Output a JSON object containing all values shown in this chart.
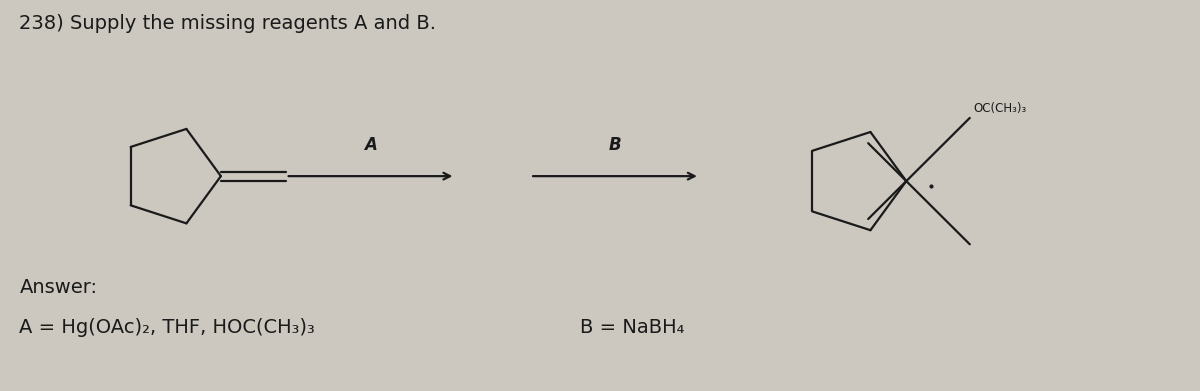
{
  "title": "238) Supply the missing reagents A and B.",
  "background_color": "#ccc8c0",
  "answer_label": "Answer:",
  "answer_A": "A = Hg(OAc)₂, THF, HOC(CH₃)₃",
  "answer_B": "B = NaBH₄",
  "arrow_A_label": "A",
  "arrow_B_label": "B",
  "text_color": "#1a1a1a",
  "font_size_title": 14,
  "font_size_answer": 14,
  "font_size_label": 12,
  "oc_label": "OC(CH₃)₃"
}
